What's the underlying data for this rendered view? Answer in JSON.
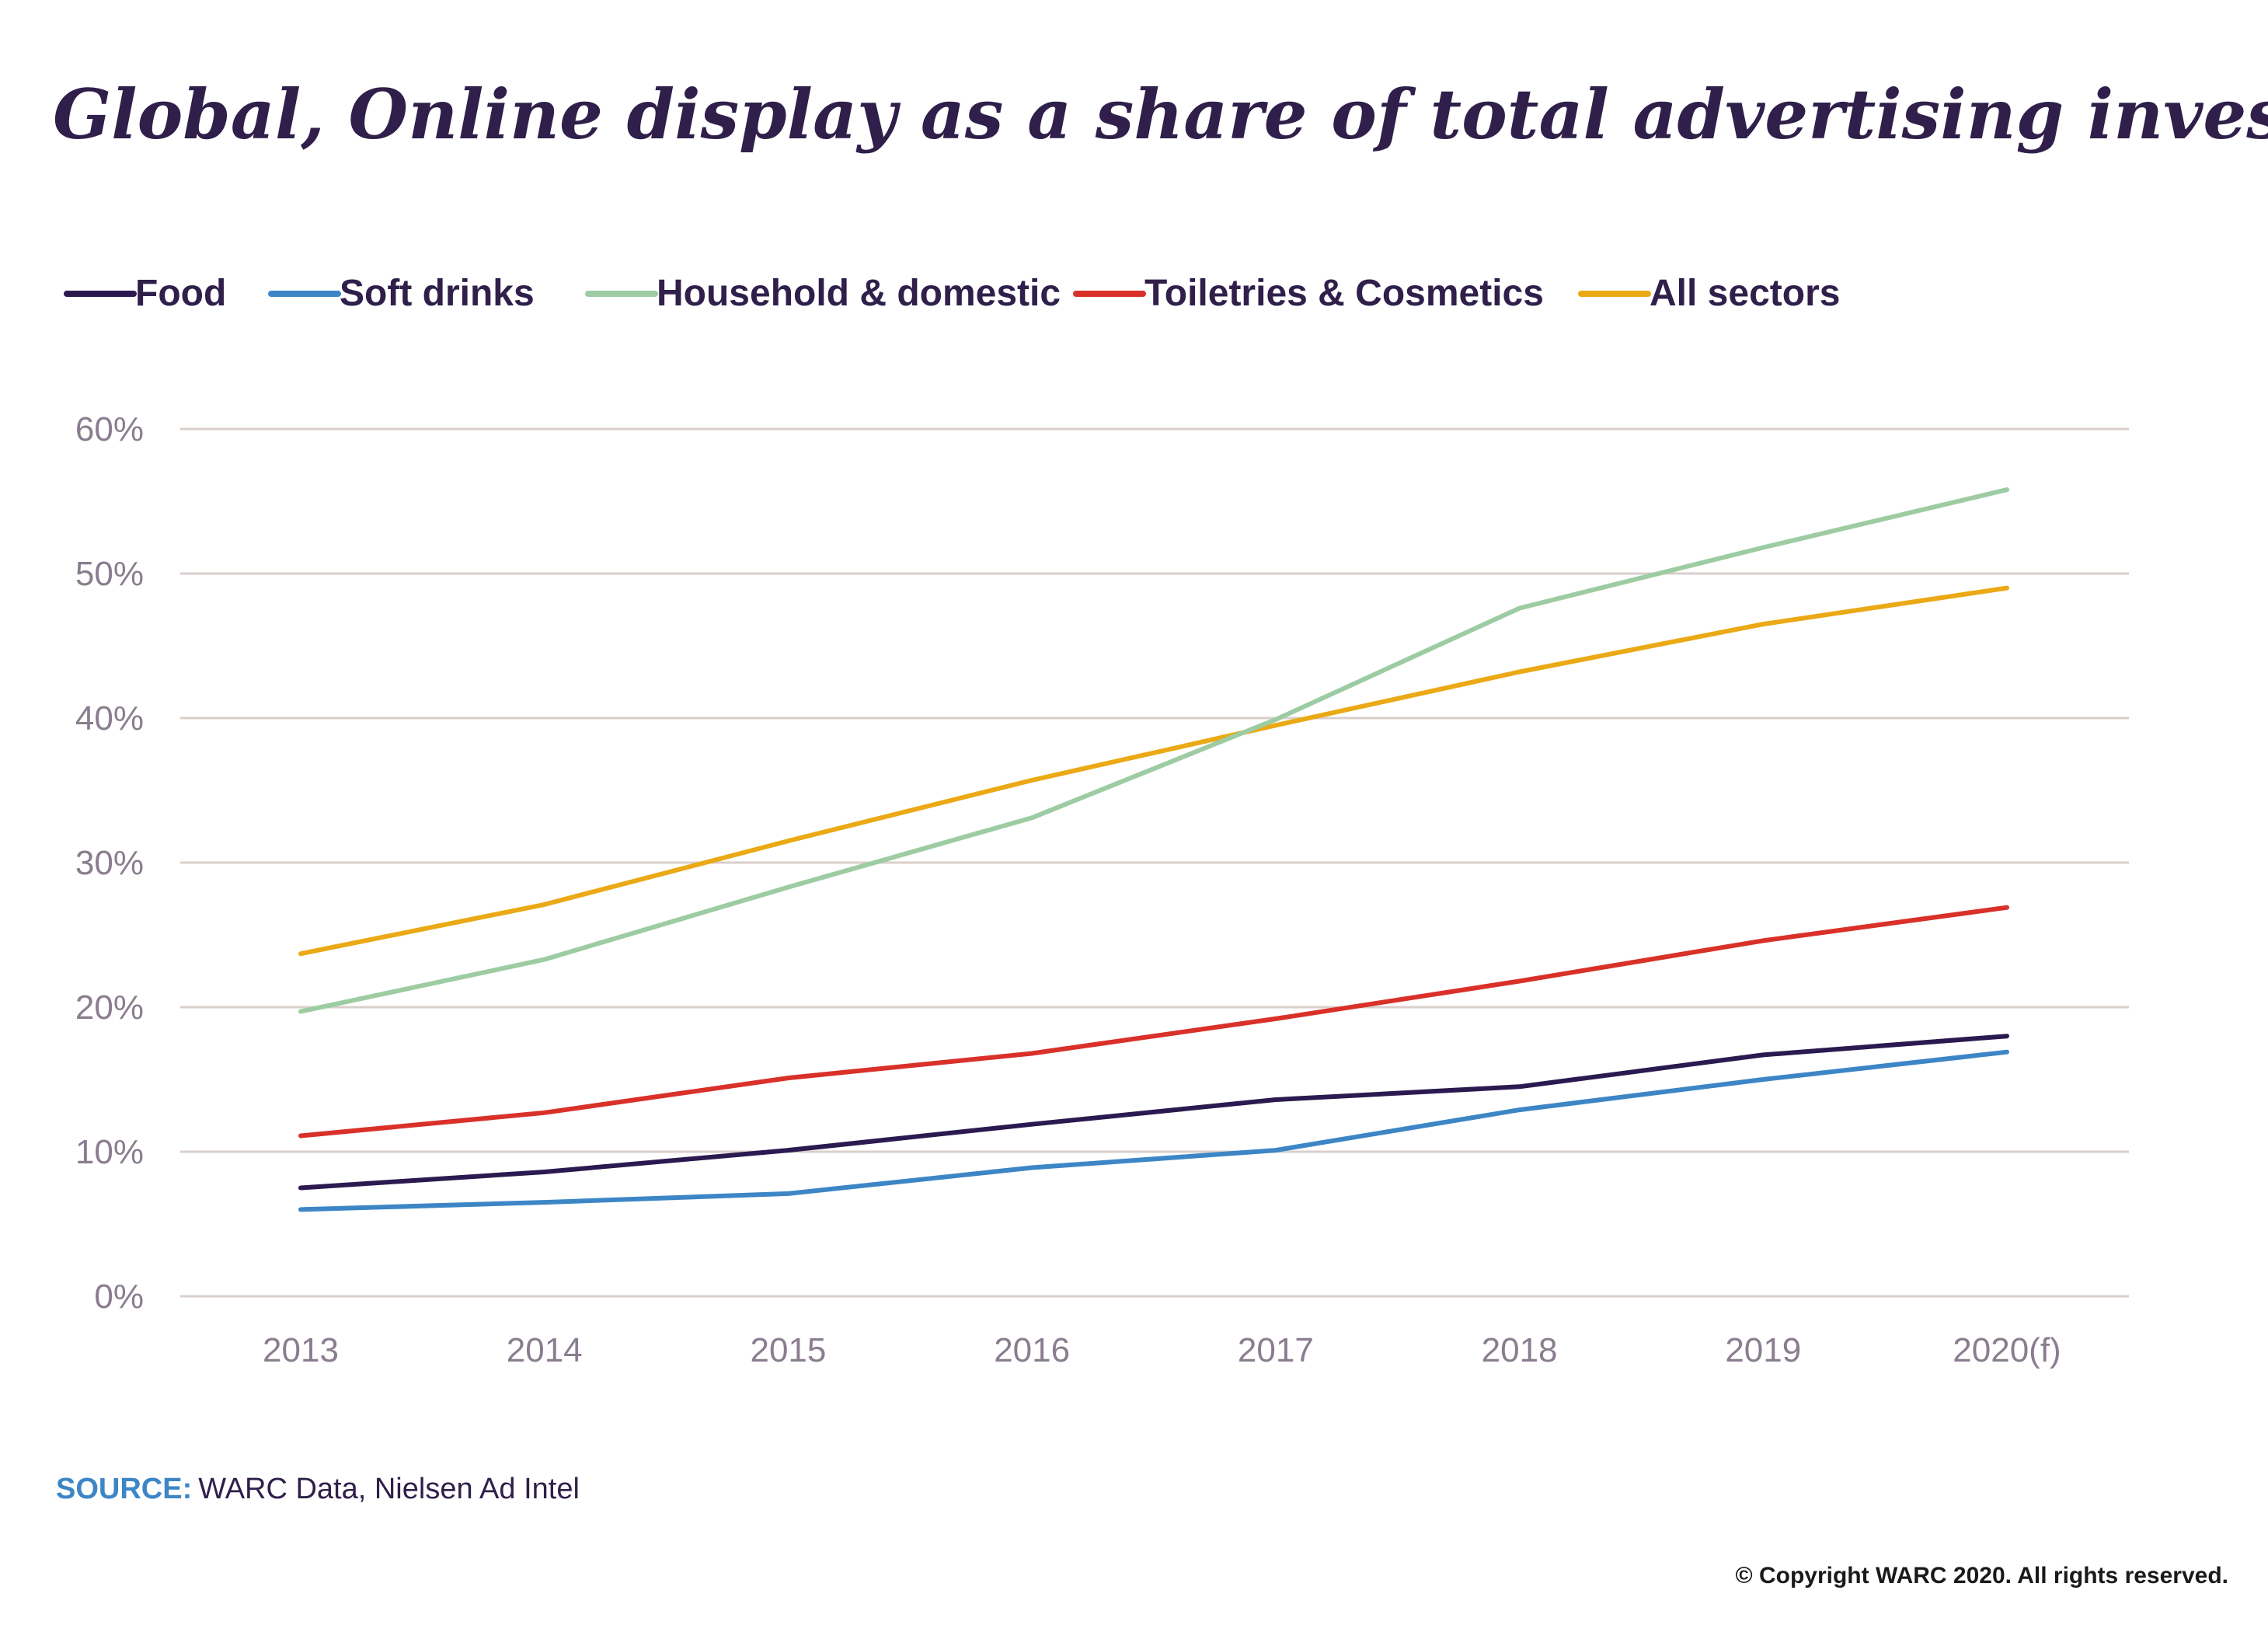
{
  "chart_data": {
    "type": "line",
    "title": "Global, Online display as a share of total advertising investment",
    "categories": [
      "2013",
      "2014",
      "2015",
      "2016",
      "2017",
      "2018",
      "2019",
      "2020(f)"
    ],
    "y_ticks": [
      "0%",
      "10%",
      "20%",
      "30%",
      "40%",
      "50%",
      "60%"
    ],
    "ylim": [
      0,
      60
    ],
    "grid": "horizontal",
    "legend_position": "top",
    "series": [
      {
        "name": "Food",
        "color": "#2b1a4f",
        "values": [
          7.5,
          8.6,
          10.1,
          11.9,
          13.6,
          14.5,
          16.7,
          18.0
        ]
      },
      {
        "name": "Soft drinks",
        "color": "#3d86c6",
        "values": [
          6.0,
          6.5,
          7.1,
          8.9,
          10.1,
          12.9,
          15.0,
          16.9
        ]
      },
      {
        "name": "Household & domestic",
        "color": "#9dcca3",
        "values": [
          19.7,
          23.3,
          28.3,
          33.1,
          39.9,
          47.6,
          51.8,
          55.8
        ]
      },
      {
        "name": "Toiletries & Cosmetics",
        "color": "#d9312a",
        "values": [
          11.1,
          12.7,
          15.1,
          16.8,
          19.2,
          21.8,
          24.6,
          26.9
        ]
      },
      {
        "name": "All sectors",
        "color": "#eaa915",
        "values": [
          23.7,
          27.1,
          31.5,
          35.7,
          39.5,
          43.2,
          46.5,
          49.0
        ]
      }
    ]
  },
  "footer": {
    "source_label": "SOURCE:",
    "source_text": "WARC Data, Nielsen Ad Intel",
    "source_label_color": "#3d86c6",
    "copyright": "© Copyright WARC 2020. All rights reserved."
  }
}
